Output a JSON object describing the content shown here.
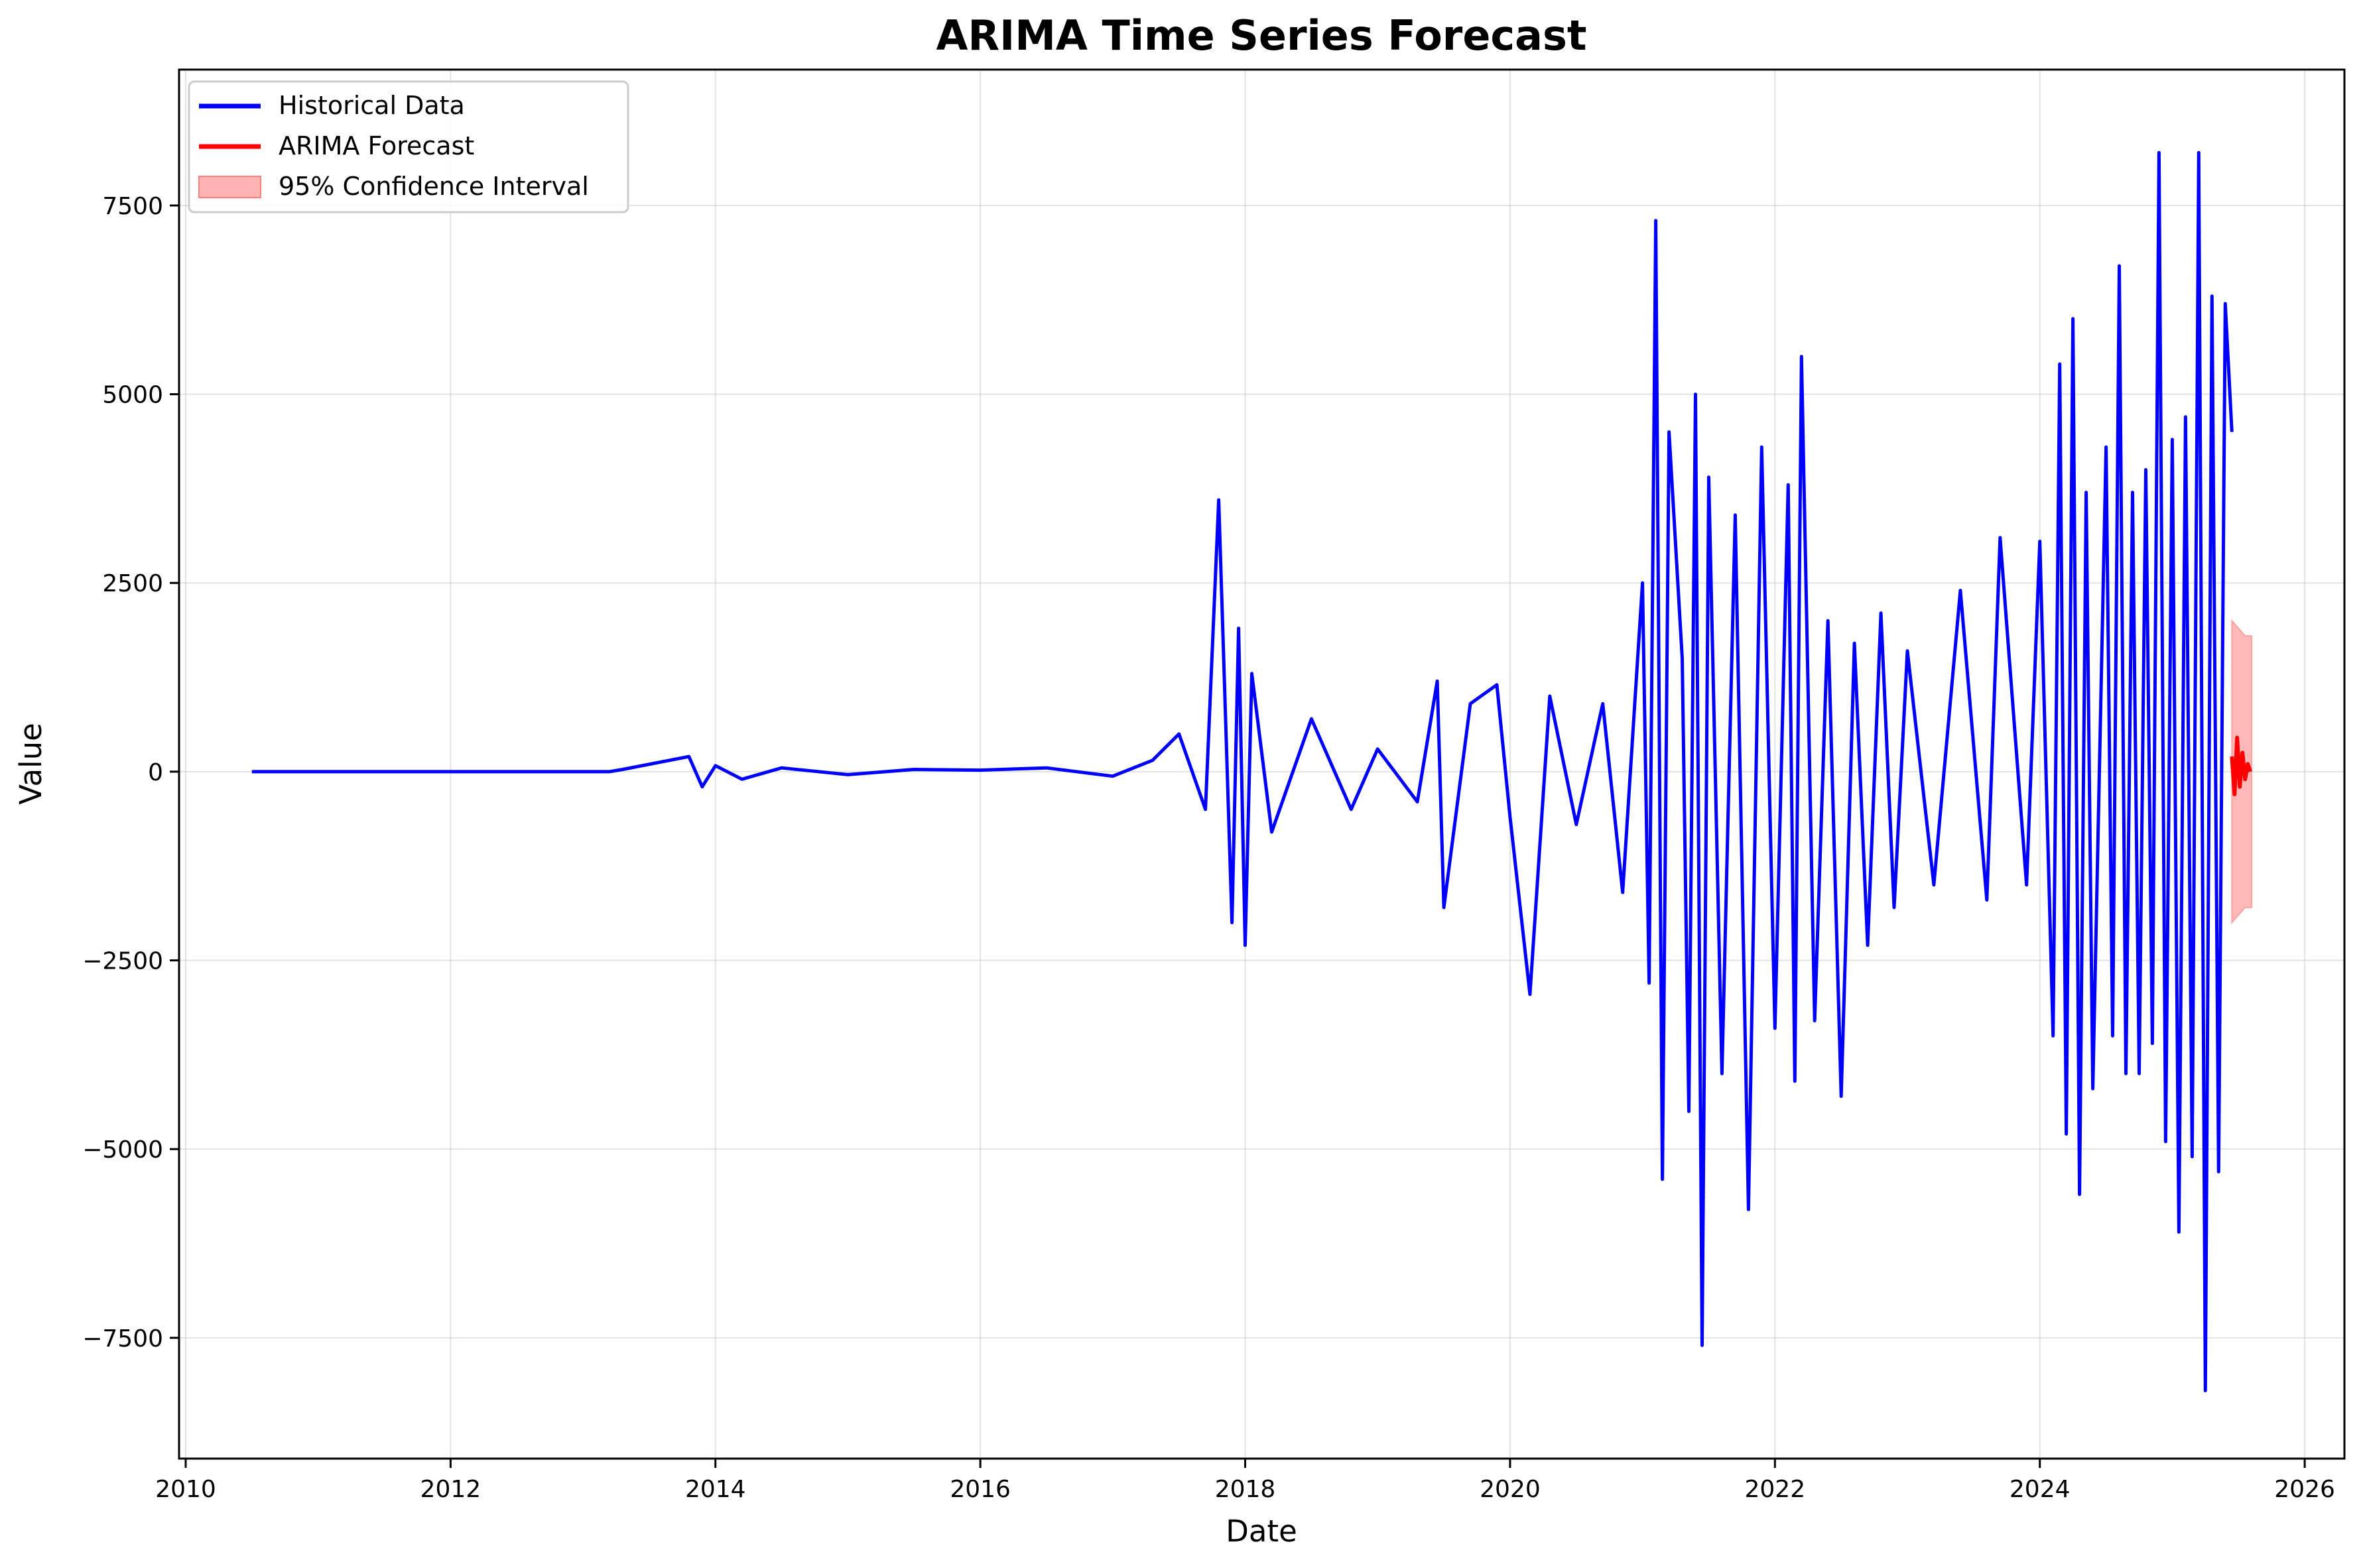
{
  "chart_data": {
    "type": "line",
    "title": "ARIMA Time Series Forecast",
    "xlabel": "Date",
    "ylabel": "Value",
    "xlim": [
      2009.95,
      2026.3
    ],
    "ylim": [
      -9100,
      9300
    ],
    "x_ticks": [
      2010,
      2012,
      2014,
      2016,
      2018,
      2020,
      2022,
      2024,
      2026
    ],
    "x_tick_labels": [
      "2010",
      "2012",
      "2014",
      "2016",
      "2018",
      "2020",
      "2022",
      "2024",
      "2026"
    ],
    "y_ticks": [
      -7500,
      -5000,
      -2500,
      0,
      2500,
      5000,
      7500
    ],
    "y_tick_labels": [
      "−7500",
      "−5000",
      "−2500",
      "0",
      "2500",
      "5000",
      "7500"
    ],
    "grid": true,
    "legend_position": "top-left",
    "legend": [
      "Historical Data",
      "ARIMA Forecast",
      "95% Confidence Interval"
    ],
    "series": [
      {
        "name": "Historical Data",
        "color": "#0000ff",
        "x": [
          2010.5,
          2011.5,
          2012.5,
          2013.2,
          2013.3,
          2013.8,
          2013.9,
          2014.0,
          2014.2,
          2014.5,
          2015.0,
          2015.5,
          2016.0,
          2016.5,
          2017.0,
          2017.3,
          2017.5,
          2017.7,
          2017.8,
          2017.9,
          2017.95,
          2018.0,
          2018.05,
          2018.2,
          2018.5,
          2018.8,
          2019.0,
          2019.3,
          2019.45,
          2019.5,
          2019.7,
          2019.9,
          2020.0,
          2020.15,
          2020.3,
          2020.5,
          2020.7,
          2020.85,
          2021.0,
          2021.05,
          2021.1,
          2021.15,
          2021.2,
          2021.3,
          2021.35,
          2021.4,
          2021.45,
          2021.5,
          2021.6,
          2021.7,
          2021.8,
          2021.9,
          2022.0,
          2022.1,
          2022.15,
          2022.2,
          2022.3,
          2022.4,
          2022.5,
          2022.6,
          2022.7,
          2022.8,
          2022.9,
          2023.0,
          2023.2,
          2023.4,
          2023.6,
          2023.7,
          2023.9,
          2024.0,
          2024.1,
          2024.15,
          2024.2,
          2024.25,
          2024.3,
          2024.35,
          2024.4,
          2024.5,
          2024.55,
          2024.6,
          2024.65,
          2024.7,
          2024.75,
          2024.8,
          2024.85,
          2024.9,
          2024.95,
          2025.0,
          2025.05,
          2025.1,
          2025.15,
          2025.2,
          2025.25,
          2025.3,
          2025.35,
          2025.4,
          2025.45
        ],
        "y": [
          0,
          0,
          0,
          0,
          30,
          200,
          -200,
          80,
          -100,
          50,
          -40,
          30,
          20,
          50,
          -60,
          150,
          500,
          -500,
          3600,
          -2000,
          1900,
          -2300,
          1300,
          -800,
          700,
          -500,
          300,
          -400,
          1200,
          -1800,
          900,
          1150,
          -600,
          -2950,
          1000,
          -700,
          900,
          -1600,
          2500,
          -2800,
          7300,
          -5400,
          4500,
          1500,
          -4500,
          5000,
          -7600,
          3900,
          -4000,
          3400,
          -5800,
          4300,
          -3400,
          3800,
          -4100,
          5500,
          -3300,
          2000,
          -4300,
          1700,
          -2300,
          2100,
          -1800,
          1600,
          -1500,
          2400,
          -1700,
          3100,
          -1500,
          3050,
          -3500,
          5400,
          -4800,
          6000,
          -5600,
          3700,
          -4200,
          4300,
          -3500,
          6700,
          -4000,
          3700,
          -4000,
          4000,
          -3600,
          8200,
          -4900,
          4400,
          -6100,
          4700,
          -5100,
          8200,
          -8200,
          6300,
          -5300,
          6200,
          4500
        ]
      },
      {
        "name": "ARIMA Forecast",
        "color": "#ff0000",
        "x": [
          2025.45,
          2025.47,
          2025.49,
          2025.51,
          2025.53,
          2025.55,
          2025.57,
          2025.59
        ],
        "y": [
          200,
          -300,
          450,
          -200,
          250,
          -100,
          100,
          0
        ]
      }
    ],
    "confidence_interval": {
      "name": "95% Confidence Interval",
      "color": "#ff8080",
      "x": [
        2025.45,
        2025.5,
        2025.55,
        2025.6
      ],
      "upper": [
        2000,
        1900,
        1800,
        1800
      ],
      "lower": [
        -2000,
        -1900,
        -1800,
        -1800
      ]
    }
  }
}
